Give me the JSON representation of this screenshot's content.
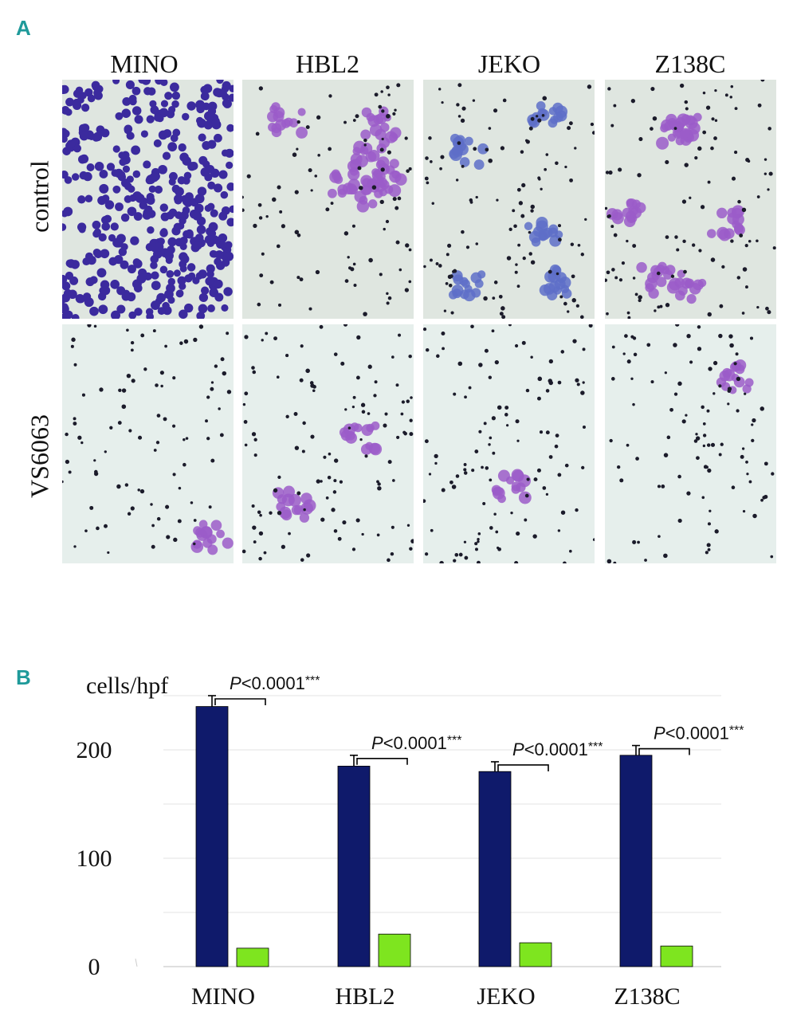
{
  "panel_a": {
    "letter": "A",
    "columns": [
      "MINO",
      "HBL2",
      "JEKO",
      "Z138C"
    ],
    "rows": [
      "control",
      "VS6063"
    ],
    "colors": {
      "stain_dark": "#3b2a9e",
      "stain_purple": "#9b5cc9",
      "background_control": "#dfe6e0",
      "background_treated": "#e6efec"
    }
  },
  "panel_b": {
    "letter": "B"
  },
  "chart_data": {
    "type": "bar",
    "ylabel": "cells/hpf",
    "ylim": [
      0,
      250
    ],
    "yticks": [
      0,
      100,
      200
    ],
    "grid": true,
    "categories": [
      "MINO",
      "HBL2",
      "JEKO",
      "Z138C"
    ],
    "series": [
      {
        "name": "control",
        "color": "#0f1a6b",
        "values": [
          240,
          185,
          180,
          195
        ],
        "errors": [
          10,
          10,
          9,
          9
        ]
      },
      {
        "name": "VS6063",
        "color": "#7ee51f",
        "values": [
          17,
          30,
          22,
          19
        ]
      }
    ],
    "annotations": [
      {
        "category": "MINO",
        "italic": "P",
        "text": "<0.0001",
        "stars": "***"
      },
      {
        "category": "HBL2",
        "italic": "P",
        "text": "<0.0001",
        "stars": "***"
      },
      {
        "category": "JEKO",
        "italic": "P",
        "text": "<0.0001",
        "stars": "***"
      },
      {
        "category": "Z138C",
        "italic": "P",
        "text": "<0.0001",
        "stars": "***"
      }
    ]
  }
}
